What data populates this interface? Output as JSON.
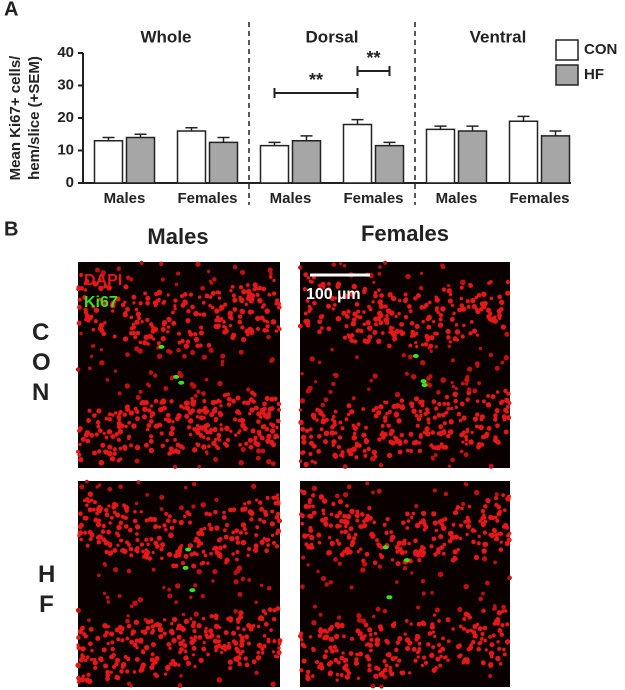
{
  "panel_labels": [
    "A",
    "B"
  ],
  "chart_data": {
    "type": "bar",
    "groups": [
      "Whole",
      "Dorsal",
      "Ventral"
    ],
    "categories": [
      "Males",
      "Females",
      "Males",
      "Females",
      "Males",
      "Females"
    ],
    "ylabel": [
      "Mean Ki67+ cells/",
      "hem/slice (+SEM)"
    ],
    "ylim": [
      0,
      40
    ],
    "yticks": [
      0,
      10,
      20,
      30,
      40
    ],
    "legend": "top-right",
    "series": [
      {
        "name": "CON",
        "color": "#ffffff",
        "values": [
          13,
          16,
          11.5,
          18,
          16.5,
          19
        ],
        "errors": [
          1,
          1,
          1,
          1.5,
          1,
          1.5
        ]
      },
      {
        "name": "HF",
        "color": "#a6a6a6",
        "values": [
          14,
          12.5,
          13,
          11.5,
          16,
          14.5
        ],
        "errors": [
          1,
          1.5,
          1.5,
          1,
          1.5,
          1.5
        ]
      }
    ],
    "annotations": [
      {
        "text": "**",
        "from": 2,
        "to": 3
      },
      {
        "text": "**",
        "from": 3,
        "to": 3
      }
    ]
  },
  "panel_b": {
    "columns": [
      "Males",
      "Females"
    ],
    "rows": [
      "CON",
      "HF"
    ],
    "stain_labels": [
      "DAPI",
      "Ki67"
    ],
    "scale_bar": "100 µm"
  }
}
